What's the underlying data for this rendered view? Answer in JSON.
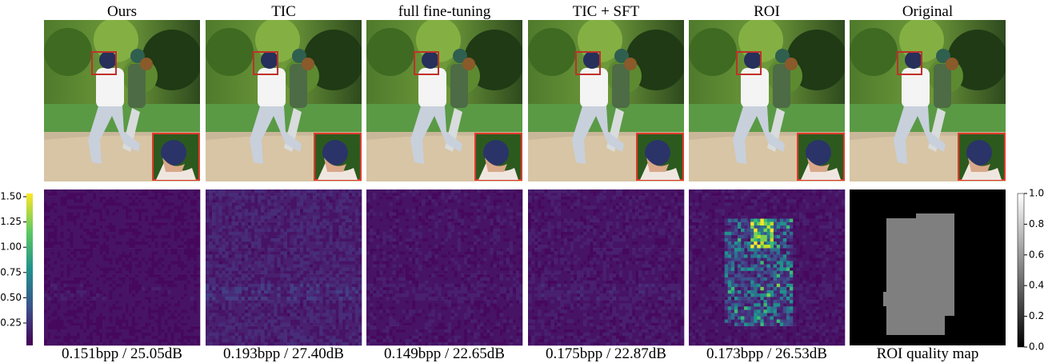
{
  "columns": [
    {
      "title": "Ours",
      "caption": "0.151bpp / 25.05dB"
    },
    {
      "title": "TIC",
      "caption": "0.193bpp / 27.40dB"
    },
    {
      "title": "full fine-tuning",
      "caption": "0.149bpp / 22.65dB"
    },
    {
      "title": "TIC + SFT",
      "caption": "0.175bpp / 22.87dB"
    },
    {
      "title": "ROI",
      "caption": "0.173bpp / 26.53dB"
    },
    {
      "title": "Original",
      "caption": "ROI quality map"
    }
  ],
  "left_colorbar": {
    "ticks": [
      "1.50",
      "1.25",
      "1.00",
      "0.75",
      "0.50",
      "0.25"
    ]
  },
  "right_colorbar": {
    "ticks": [
      "1.0",
      "0.8",
      "0.6",
      "0.4",
      "0.2",
      "0.0"
    ]
  }
}
